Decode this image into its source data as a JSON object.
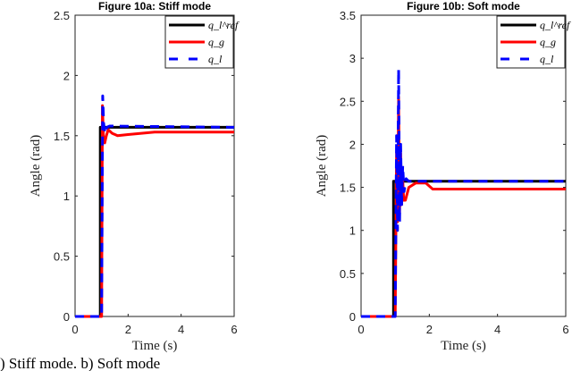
{
  "caption": ") Stiff mode. b) Soft mode",
  "colors": {
    "ref": "#000000",
    "qg": "#ff0000",
    "ql": "#0000ff"
  },
  "chart_data": [
    {
      "type": "line",
      "title": "Figure 10a: Stiff mode",
      "xlabel": "Time (s)",
      "ylabel": "Angle (rad)",
      "xlim": [
        0,
        6
      ],
      "ylim": [
        0,
        2.5
      ],
      "xticks": [
        "0",
        "2",
        "4",
        "6"
      ],
      "yticks": [
        "0",
        "0.5",
        "1",
        "1.5",
        "2",
        "2.5"
      ],
      "legend": {
        "placement": "top-right",
        "entries": [
          "q_l^ref",
          "q_g",
          "q_l"
        ]
      },
      "series": [
        {
          "name": "q_l^ref",
          "x": [
            0,
            0.95,
            0.95,
            6
          ],
          "y": [
            0,
            0,
            1.57,
            1.57
          ]
        },
        {
          "name": "q_g",
          "x": [
            0,
            1.0,
            1.03,
            1.07,
            1.12,
            1.18,
            1.25,
            1.4,
            1.6,
            2.0,
            3.0,
            4.5,
            6
          ],
          "y": [
            0,
            0,
            1.75,
            1.5,
            1.44,
            1.5,
            1.55,
            1.52,
            1.5,
            1.51,
            1.53,
            1.53,
            1.53
          ]
        },
        {
          "name": "q_l",
          "x": [
            0,
            1.0,
            1.04,
            1.08,
            1.13,
            1.2,
            1.3,
            6
          ],
          "y": [
            0,
            0,
            1.83,
            1.6,
            1.52,
            1.57,
            1.58,
            1.57
          ]
        }
      ]
    },
    {
      "type": "line",
      "title": "Figure 10b: Soft mode",
      "xlabel": "Time (s)",
      "ylabel": "Angle (rad)",
      "xlim": [
        0,
        6
      ],
      "ylim": [
        0,
        3.5
      ],
      "xticks": [
        "0",
        "2",
        "4",
        "6"
      ],
      "yticks": [
        "0",
        "0.5",
        "1",
        "1.5",
        "2",
        "2.5",
        "3",
        "3.5"
      ],
      "legend": {
        "placement": "top-right",
        "entries": [
          "q_l^ref",
          "q_g",
          "q_l"
        ]
      },
      "series": [
        {
          "name": "q_l^ref",
          "x": [
            0,
            0.95,
            0.95,
            6
          ],
          "y": [
            0,
            0,
            1.57,
            1.57
          ]
        },
        {
          "name": "q_g",
          "x": [
            0,
            1.0,
            1.04,
            1.07,
            1.1,
            1.13,
            1.16,
            1.19,
            1.22,
            1.25,
            1.3,
            1.4,
            1.6,
            1.9,
            2.1,
            3,
            6
          ],
          "y": [
            0,
            0,
            1.9,
            1.1,
            2.55,
            1.2,
            1.9,
            1.3,
            1.6,
            1.35,
            1.35,
            1.5,
            1.55,
            1.55,
            1.48,
            1.48,
            1.48
          ]
        },
        {
          "name": "q_l",
          "x": [
            0,
            1.0,
            1.04,
            1.07,
            1.1,
            1.13,
            1.16,
            1.19,
            1.22,
            1.26,
            1.32,
            1.4,
            6
          ],
          "y": [
            0,
            0,
            2.1,
            1.0,
            2.87,
            1.1,
            2.0,
            1.3,
            1.75,
            1.45,
            1.6,
            1.57,
            1.57
          ]
        }
      ]
    }
  ]
}
